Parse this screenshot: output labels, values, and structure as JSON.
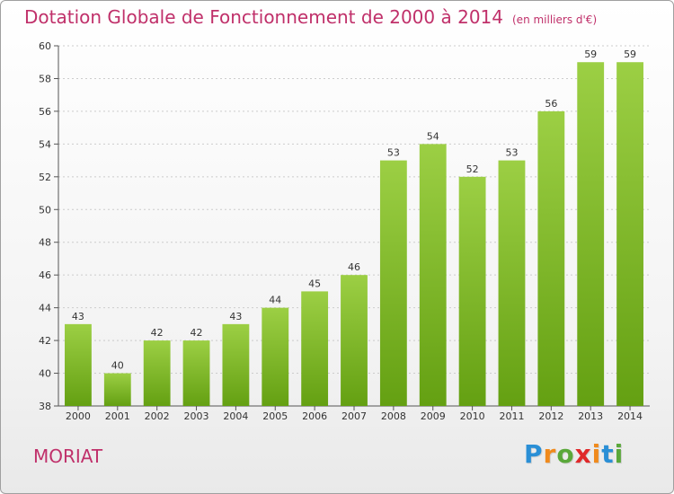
{
  "chart_data": {
    "type": "bar",
    "title": "Dotation Globale de Fonctionnement de 2000 à 2014",
    "subtitle": "(en milliers d'€)",
    "categories": [
      "2000",
      "2001",
      "2002",
      "2003",
      "2004",
      "2005",
      "2006",
      "2007",
      "2008",
      "2009",
      "2010",
      "2011",
      "2012",
      "2013",
      "2014"
    ],
    "values": [
      43,
      40,
      42,
      42,
      43,
      44,
      45,
      46,
      53,
      54,
      52,
      53,
      56,
      59,
      59
    ],
    "ylim": [
      38,
      60
    ],
    "yticks": [
      38,
      40,
      42,
      44,
      46,
      48,
      50,
      52,
      54,
      56,
      58,
      60
    ],
    "grid": true,
    "xlabel": "",
    "ylabel": "",
    "bar_color_top": "#9ccf44",
    "bar_color_bottom": "#64a012"
  },
  "footer": {
    "commune": "MORIAT",
    "logo_letters": [
      "P",
      "r",
      "o",
      "x",
      "i",
      "t",
      "i"
    ],
    "logo_colors": [
      "#2a8fd6",
      "#f08a1c",
      "#5aa83a",
      "#e0282a",
      "#f08a1c",
      "#2a8fd6",
      "#5aa83a"
    ]
  },
  "colors": {
    "title": "#c0306a",
    "axis": "#555555",
    "grid": "#cccccc"
  }
}
